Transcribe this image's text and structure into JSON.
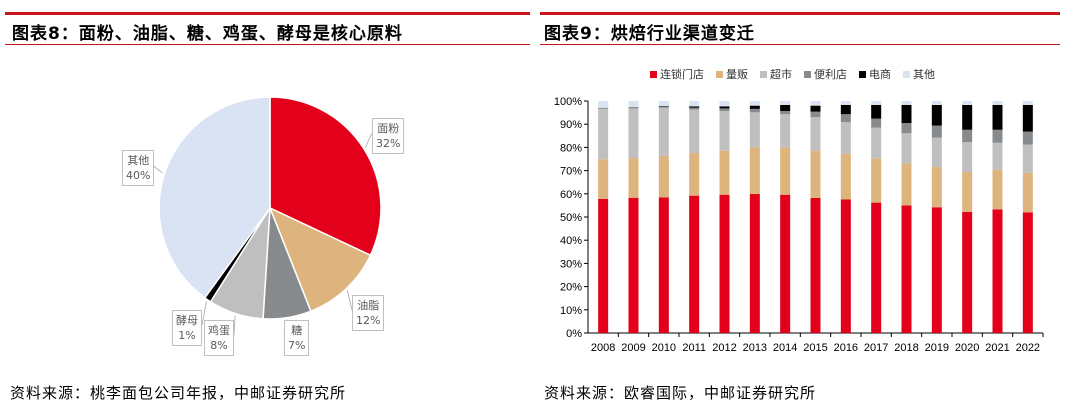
{
  "left": {
    "title": "图表8：面粉、油脂、糖、鸡蛋、酵母是核心原料",
    "source": "资料来源：桃李面包公司年报，中邮证券研究所"
  },
  "right": {
    "title": "图表9：烘焙行业渠道变迁",
    "source": "资料来源：欧睿国际，中邮证券研究所"
  },
  "chart_data": [
    {
      "type": "pie",
      "title": "图表8：面粉、油脂、糖、鸡蛋、酵母是核心原料",
      "slices": [
        {
          "label": "面粉",
          "value": 32,
          "text": "32%",
          "color": "#E2001A"
        },
        {
          "label": "油脂",
          "value": 12,
          "text": "12%",
          "color": "#DDB47E"
        },
        {
          "label": "糖",
          "value": 7,
          "text": "7%",
          "color": "#888B8D"
        },
        {
          "label": "鸡蛋",
          "value": 8,
          "text": "8%",
          "color": "#BFBFBF"
        },
        {
          "label": "酵母",
          "value": 1,
          "text": "1%",
          "color": "#000000"
        },
        {
          "label": "其他",
          "value": 40,
          "text": "40%",
          "color": "#DAE3F3"
        }
      ]
    },
    {
      "type": "bar",
      "stacked": true,
      "title": "图表9：烘焙行业渠道变迁",
      "categories": [
        "2008",
        "2009",
        "2010",
        "2011",
        "2012",
        "2013",
        "2014",
        "2015",
        "2016",
        "2017",
        "2018",
        "2019",
        "2020",
        "2021",
        "2022"
      ],
      "ylim": [
        0,
        100
      ],
      "yticks": [
        "0%",
        "10%",
        "20%",
        "30%",
        "40%",
        "50%",
        "60%",
        "70%",
        "80%",
        "90%",
        "100%"
      ],
      "legend_position": "top",
      "series": [
        {
          "name": "连锁门店",
          "color": "#E2001A",
          "values": [
            57.8,
            58.3,
            58.5,
            59.2,
            59.6,
            59.9,
            59.6,
            58.2,
            57.6,
            56.2,
            55.0,
            54.2,
            52.2,
            53.3,
            52.0
          ]
        },
        {
          "name": "量贩",
          "color": "#DDB47E",
          "values": [
            17.1,
            17.1,
            17.9,
            18.4,
            19.0,
            20.1,
            20.3,
            20.4,
            19.7,
            19.1,
            18.1,
            17.4,
            17.2,
            17.1,
            17.0
          ]
        },
        {
          "name": "超市",
          "color": "#BFBFBF",
          "values": [
            21.7,
            21.4,
            20.7,
            18.7,
            17.1,
            15.1,
            14.4,
            14.5,
            13.6,
            13.2,
            13.0,
            12.6,
            12.9,
            11.6,
            12.2
          ]
        },
        {
          "name": "便利店",
          "color": "#888B8D",
          "values": [
            0.5,
            0.6,
            0.6,
            0.8,
            1.1,
            1.5,
            1.4,
            2.3,
            3.4,
            3.9,
            4.4,
            5.2,
            5.3,
            5.6,
            5.6
          ]
        },
        {
          "name": "电商",
          "color": "#000000",
          "values": [
            0,
            0,
            0.1,
            0.6,
            0.9,
            1.4,
            2.6,
            2.6,
            4.0,
            5.9,
            7.8,
            8.9,
            10.7,
            10.7,
            11.5
          ]
        },
        {
          "name": "其他",
          "color": "#DAE3F3",
          "values": [
            2.9,
            2.6,
            2.2,
            2.3,
            2.3,
            2.0,
            1.7,
            2.0,
            1.7,
            1.7,
            1.7,
            1.7,
            1.7,
            1.7,
            1.7
          ]
        }
      ]
    }
  ]
}
